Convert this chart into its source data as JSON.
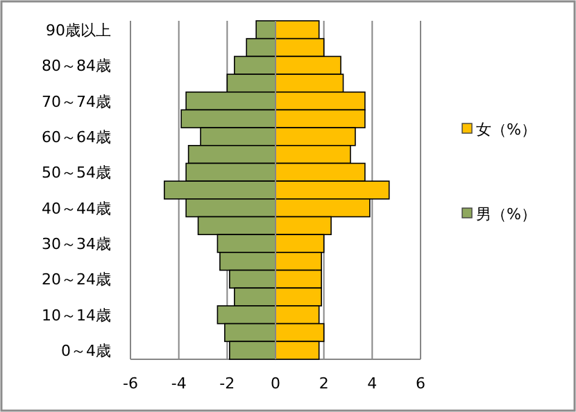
{
  "chart_data": {
    "type": "bar",
    "orientation": "horizontal",
    "stacked": true,
    "categories": [
      "90歳以上",
      null,
      "80～84歳",
      null,
      "70～74歳",
      null,
      "60～64歳",
      null,
      "50～54歳",
      null,
      "40～44歳",
      null,
      "30～34歳",
      null,
      "20～24歳",
      null,
      "10～14歳",
      null,
      "0～4歳"
    ],
    "series": [
      {
        "name": "女（%）",
        "color": "#ffc000",
        "values": [
          1.8,
          2.0,
          2.7,
          2.8,
          3.7,
          3.7,
          3.3,
          3.1,
          3.7,
          4.7,
          3.9,
          2.3,
          2.0,
          1.9,
          1.9,
          1.9,
          1.8,
          2.0,
          1.8
        ]
      },
      {
        "name": "男（%）",
        "color": "#8fa85e",
        "values": [
          -0.8,
          -1.2,
          -1.7,
          -2.0,
          -3.7,
          -3.9,
          -3.1,
          -3.6,
          -3.7,
          -4.6,
          -3.7,
          -3.2,
          -2.4,
          -2.3,
          -1.9,
          -1.7,
          -2.4,
          -2.1,
          -1.9
        ]
      }
    ],
    "xlim": [
      -6,
      6
    ],
    "xticks": [
      -6,
      -4,
      -2,
      0,
      2,
      4,
      6
    ],
    "grid": "x",
    "legend": "right"
  }
}
